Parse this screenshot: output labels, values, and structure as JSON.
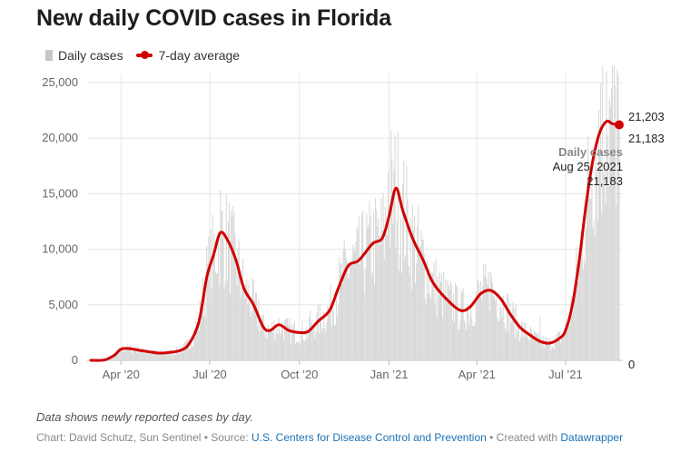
{
  "title": "New daily COVID cases in Florida",
  "legend": {
    "bars": "Daily cases",
    "line": "7-day average"
  },
  "colors": {
    "bars": "#d9d9d9",
    "line": "#d10000",
    "grid": "#e6e6e6"
  },
  "annotation": {
    "label": "Daily cases",
    "date": "Aug 25, 2021",
    "value": "21,183",
    "end_upper": "21,203",
    "end_lower": "21,183",
    "zero_label": "0"
  },
  "note": "Data shows newly reported cases by day.",
  "footer": {
    "prefix": "Chart: David Schutz, Sun Sentinel • Source: ",
    "source": "U.S. Centers for Disease Control and Prevention",
    "mid": " • Created with ",
    "tool": "Datawrapper"
  },
  "chart_data": {
    "type": "bar",
    "title": "New daily COVID cases in Florida",
    "x_range": [
      "2020-03-01",
      "2021-08-25"
    ],
    "ylim": [
      0,
      25000
    ],
    "yticks": [
      0,
      5000,
      10000,
      15000,
      20000,
      25000
    ],
    "ytick_labels": [
      "0",
      "5,000",
      "10,000",
      "15,000",
      "20,000",
      "25,000"
    ],
    "xticks": [
      "2020-04-01",
      "2020-07-01",
      "2020-10-01",
      "2021-01-01",
      "2021-04-01",
      "2021-07-01"
    ],
    "xtick_labels": [
      "Apr ’20",
      "Jul ’20",
      "Oct ’20",
      "Jan ’21",
      "Apr ’21",
      "Jul ’21"
    ],
    "grid": true,
    "legend_position": "top-left",
    "series": [
      {
        "name": "7-day average",
        "style": "line",
        "points": [
          [
            "2020-03-01",
            0
          ],
          [
            "2020-03-15",
            30
          ],
          [
            "2020-03-25",
            450
          ],
          [
            "2020-04-01",
            1000
          ],
          [
            "2020-04-10",
            1050
          ],
          [
            "2020-04-20",
            900
          ],
          [
            "2020-05-01",
            750
          ],
          [
            "2020-05-10",
            650
          ],
          [
            "2020-05-20",
            700
          ],
          [
            "2020-06-01",
            900
          ],
          [
            "2020-06-10",
            1500
          ],
          [
            "2020-06-20",
            3500
          ],
          [
            "2020-06-28",
            7500
          ],
          [
            "2020-07-05",
            9500
          ],
          [
            "2020-07-12",
            11500
          ],
          [
            "2020-07-20",
            10700
          ],
          [
            "2020-07-28",
            9000
          ],
          [
            "2020-08-05",
            6500
          ],
          [
            "2020-08-15",
            5000
          ],
          [
            "2020-08-25",
            3000
          ],
          [
            "2020-09-01",
            2700
          ],
          [
            "2020-09-10",
            3200
          ],
          [
            "2020-09-20",
            2700
          ],
          [
            "2020-10-01",
            2500
          ],
          [
            "2020-10-10",
            2600
          ],
          [
            "2020-10-20",
            3500
          ],
          [
            "2020-11-01",
            4500
          ],
          [
            "2020-11-10",
            6500
          ],
          [
            "2020-11-20",
            8500
          ],
          [
            "2020-12-01",
            9000
          ],
          [
            "2020-12-15",
            10500
          ],
          [
            "2020-12-25",
            11000
          ],
          [
            "2021-01-01",
            13000
          ],
          [
            "2021-01-08",
            15500
          ],
          [
            "2021-01-15",
            13500
          ],
          [
            "2021-01-25",
            11000
          ],
          [
            "2021-02-05",
            9000
          ],
          [
            "2021-02-15",
            7000
          ],
          [
            "2021-03-01",
            5500
          ],
          [
            "2021-03-15",
            4500
          ],
          [
            "2021-03-25",
            4800
          ],
          [
            "2021-04-05",
            6000
          ],
          [
            "2021-04-15",
            6300
          ],
          [
            "2021-04-25",
            5600
          ],
          [
            "2021-05-05",
            4200
          ],
          [
            "2021-05-15",
            3000
          ],
          [
            "2021-05-25",
            2300
          ],
          [
            "2021-06-05",
            1700
          ],
          [
            "2021-06-15",
            1550
          ],
          [
            "2021-06-25",
            2000
          ],
          [
            "2021-07-01",
            2700
          ],
          [
            "2021-07-08",
            5000
          ],
          [
            "2021-07-15",
            9000
          ],
          [
            "2021-07-22",
            14000
          ],
          [
            "2021-07-29",
            18000
          ],
          [
            "2021-08-05",
            20500
          ],
          [
            "2021-08-12",
            21500
          ],
          [
            "2021-08-18",
            21300
          ],
          [
            "2021-08-25",
            21203
          ]
        ]
      },
      {
        "name": "Daily cases",
        "style": "bars",
        "note": "One bar per day; peak daily values read from the chart",
        "points": [
          [
            "2020-04-03",
            1300
          ],
          [
            "2020-07-12",
            15300
          ],
          [
            "2020-08-20",
            5500
          ],
          [
            "2020-10-12",
            4500
          ],
          [
            "2020-12-31",
            17000
          ],
          [
            "2021-01-03",
            20800
          ],
          [
            "2021-03-10",
            7000
          ],
          [
            "2021-04-15",
            8000
          ],
          [
            "2021-06-05",
            4000
          ],
          [
            "2021-08-06",
            25000
          ],
          [
            "2021-08-12",
            26000
          ],
          [
            "2021-08-17",
            24500
          ],
          [
            "2021-08-23",
            26200
          ],
          [
            "2021-08-25",
            21183
          ]
        ]
      }
    ]
  }
}
